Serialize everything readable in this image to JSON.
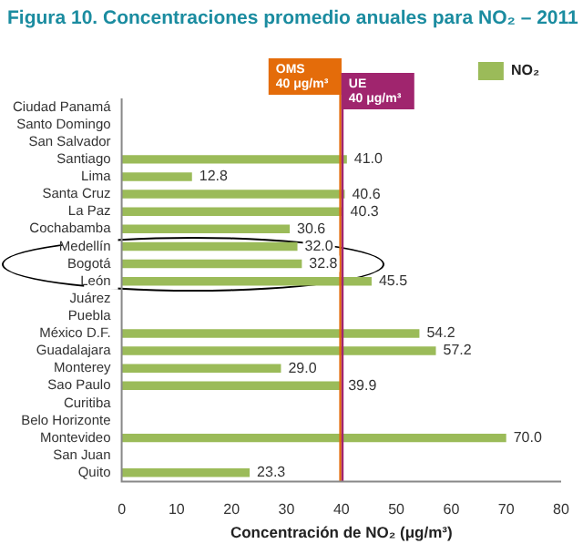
{
  "chart_data": {
    "type": "bar",
    "orientation": "horizontal",
    "title": "Figura 10. Concentraciones promedio anuales para NO₂ – 2011",
    "xlabel": "Concentración de NO₂ (μg/m³)",
    "categories": [
      "Ciudad Panamá",
      "Santo Domingo",
      "San Salvador",
      "Santiago",
      "Lima",
      "Santa Cruz",
      "La Paz",
      "Cochabamba",
      "Medellín",
      "Bogotá",
      "León",
      "Juárez",
      "Puebla",
      "México D.F.",
      "Guadalajara",
      "Monterey",
      "Sao Paulo",
      "Curitiba",
      "Belo Horizonte",
      "Montevideo",
      "San Juan",
      "Quito"
    ],
    "series": [
      {
        "name": "NO₂",
        "color": "#9bbb59",
        "values": [
          null,
          null,
          null,
          41.0,
          12.8,
          40.6,
          40.3,
          30.6,
          32.0,
          32.8,
          45.5,
          null,
          null,
          54.2,
          57.2,
          29.0,
          39.9,
          null,
          null,
          70.0,
          null,
          23.3
        ],
        "value_labels": [
          null,
          null,
          null,
          "41.0",
          "12.8",
          "40.6",
          "40.3",
          "30.6",
          "32.0",
          "32.8",
          "45.5",
          null,
          null,
          "54.2",
          "57.2",
          "29.0",
          "39.9",
          null,
          null,
          "70.0",
          null,
          "23.3"
        ]
      }
    ],
    "xlim": [
      0,
      80
    ],
    "xticks": [
      0,
      10,
      20,
      30,
      40,
      50,
      60,
      70,
      80
    ],
    "grid": false,
    "legend": "top right",
    "ref_lines": [
      {
        "axis": "x",
        "value": 40,
        "label": "OMS 40 μg/m³",
        "color": "#e46c0a"
      },
      {
        "axis": "x",
        "value": 40,
        "label": "UE 40 μg/m³",
        "color": "#a0256e"
      }
    ]
  }
}
